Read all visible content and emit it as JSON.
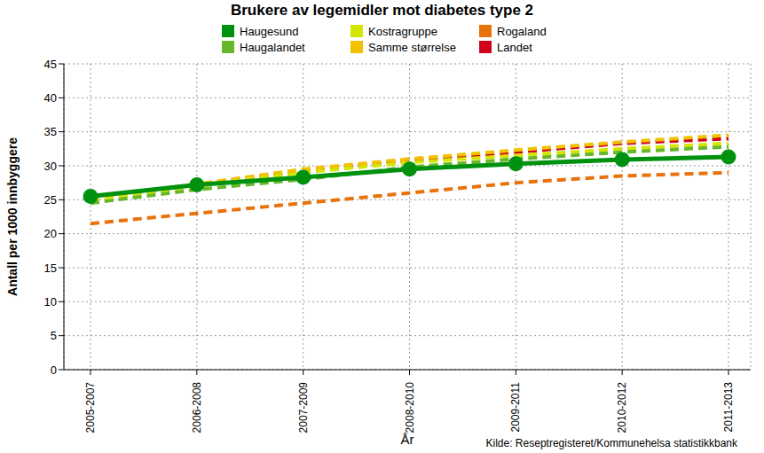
{
  "chart_data": {
    "type": "line",
    "title": "Brukere av legemidler mot diabetes type 2",
    "x_label": "År",
    "y_label": "Antall per 1000 innbyggere",
    "source": "Kilde: Reseptregisteret/Kommunehelsa statistikkbank",
    "categories": [
      "2005-2007",
      "2006-2008",
      "2007-2009",
      "2008-2010",
      "2009-2011",
      "2010-2012",
      "2011-2013"
    ],
    "series": [
      {
        "name": "Haugesund",
        "color": "#00910f",
        "line_style": "solid",
        "marker": "circle",
        "values": [
          25.5,
          27.2,
          28.3,
          29.5,
          30.3,
          30.9,
          31.3
        ]
      },
      {
        "name": "Haugalandet",
        "color": "#66b82a",
        "line_style": "dashed",
        "marker": "none",
        "values": [
          24.5,
          26.5,
          28.0,
          29.8,
          31.0,
          32.0,
          32.8
        ]
      },
      {
        "name": "Kostragruppe",
        "color": "#d4e600",
        "line_style": "dashed",
        "marker": "none",
        "values": [
          25.0,
          27.0,
          29.0,
          30.5,
          31.5,
          32.5,
          33.3
        ]
      },
      {
        "name": "Samme størrelse",
        "color": "#f2c200",
        "line_style": "dashed",
        "marker": "none",
        "values": [
          25.3,
          27.3,
          29.5,
          31.0,
          32.3,
          33.5,
          34.5
        ]
      },
      {
        "name": "Rogaland",
        "color": "#e8720c",
        "line_style": "dashed",
        "marker": "none",
        "values": [
          21.5,
          23.0,
          24.5,
          26.0,
          27.5,
          28.5,
          29.0
        ]
      },
      {
        "name": "Landet",
        "color": "#d0021b",
        "line_style": "dashed",
        "marker": "none",
        "values": [
          25.2,
          27.2,
          29.2,
          30.8,
          32.0,
          33.3,
          34.0
        ]
      }
    ],
    "ylim": [
      0,
      45
    ],
    "yticks": [
      0,
      5,
      10,
      15,
      20,
      25,
      30,
      35,
      40,
      45
    ],
    "grid": true,
    "legend": "top"
  }
}
